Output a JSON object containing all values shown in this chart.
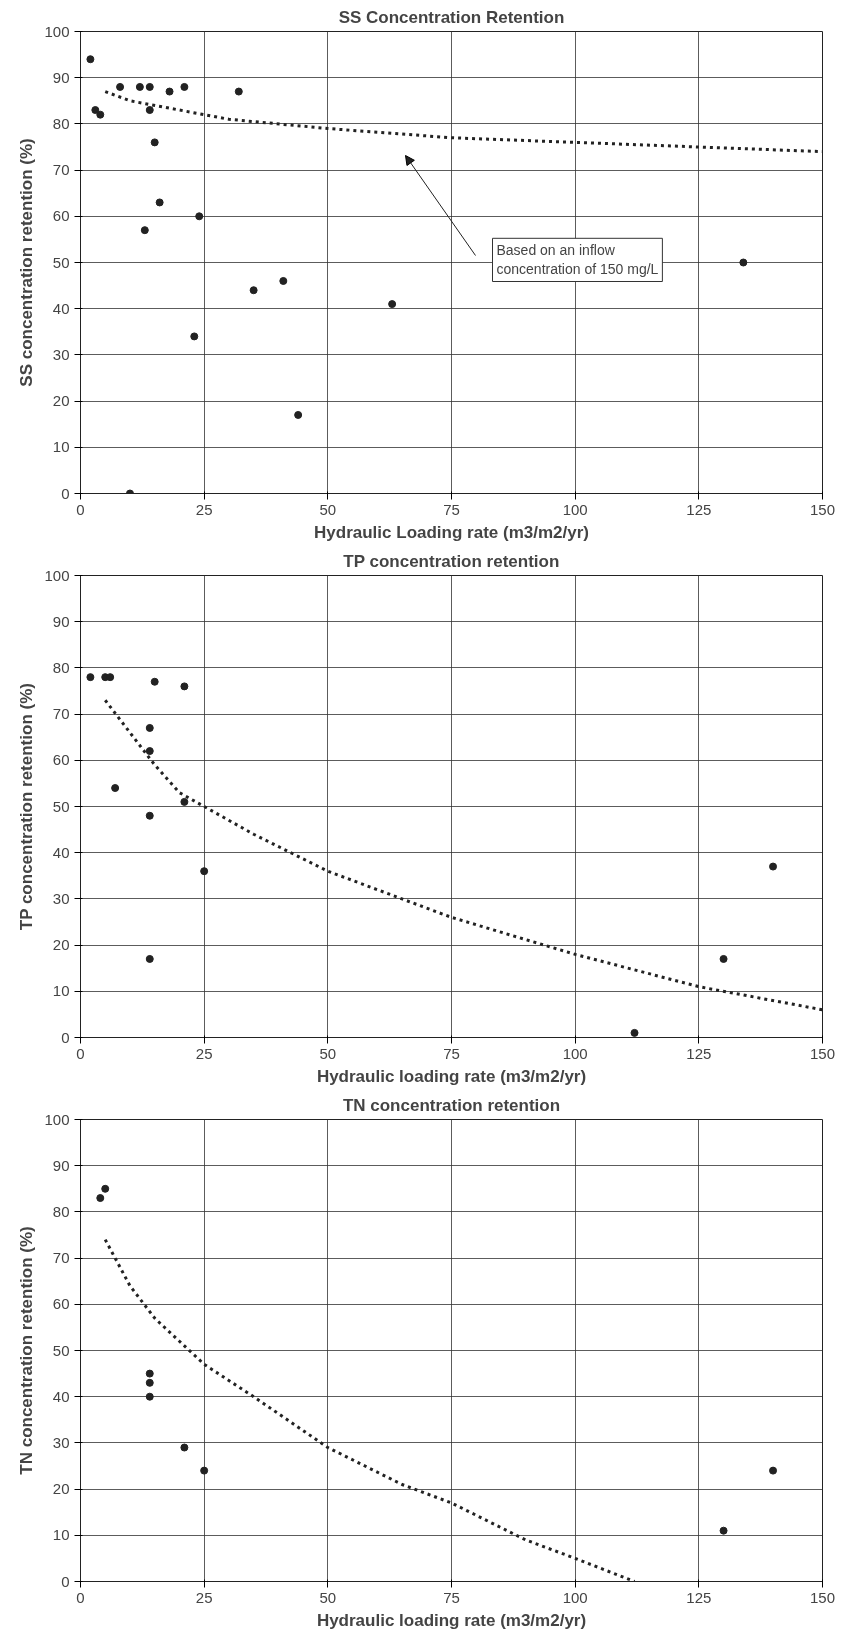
{
  "chart_data": [
    {
      "type": "scatter",
      "title": "SS Concentration Retention",
      "xlabel": "Hydraulic Loading rate (m3/m2/yr)",
      "ylabel": "SS concentration retention (%)",
      "xlim": [
        0,
        150
      ],
      "ylim": [
        0,
        100
      ],
      "xticks": [
        0,
        25,
        50,
        75,
        100,
        125,
        150
      ],
      "yticks": [
        0,
        10,
        20,
        30,
        40,
        50,
        60,
        70,
        80,
        90,
        100
      ],
      "grid": true,
      "series": [
        {
          "marker": "circle",
          "color": "#222222",
          "x": [
            2,
            3,
            4,
            8,
            12,
            14,
            14,
            15,
            16,
            13,
            18,
            21,
            10,
            24,
            23,
            32,
            35,
            41,
            44,
            63,
            134
          ],
          "values": [
            94,
            83,
            82,
            88,
            88,
            88,
            83,
            76,
            63,
            57,
            87,
            88,
            0,
            60,
            34,
            87,
            44,
            46,
            17,
            41,
            50
          ]
        },
        {
          "type": "line",
          "line_style": "dotted",
          "color": "#222222",
          "x": [
            5,
            10,
            20,
            30,
            50,
            75,
            100,
            125,
            150
          ],
          "values": [
            87,
            85,
            83,
            81,
            79,
            77,
            76,
            75,
            74
          ]
        }
      ],
      "annotations": [
        "Based on an inflow\nconcentration of 150 mg/L"
      ]
    },
    {
      "type": "scatter",
      "title": "TP concentration retention",
      "xlabel": "Hydraulic loading rate (m3/m2/yr)",
      "ylabel": "TP concentration retention (%)",
      "xlim": [
        0,
        150
      ],
      "ylim": [
        0,
        100
      ],
      "xticks": [
        0,
        25,
        50,
        75,
        100,
        125,
        150
      ],
      "yticks": [
        0,
        10,
        20,
        30,
        40,
        50,
        60,
        70,
        80,
        90,
        100
      ],
      "grid": true,
      "series": [
        {
          "marker": "circle",
          "color": "#222222",
          "x": [
            2,
            5,
            6,
            7,
            14,
            14,
            14,
            14,
            15,
            21,
            21,
            25,
            112,
            130,
            140
          ],
          "values": [
            78,
            78,
            78,
            54,
            48,
            17,
            67,
            62,
            77,
            76,
            51,
            36,
            1,
            17,
            37
          ]
        },
        {
          "type": "line",
          "line_style": "dotted",
          "color": "#222222",
          "x": [
            5,
            10,
            15,
            20,
            25,
            35,
            50,
            65,
            75,
            100,
            125,
            150
          ],
          "values": [
            73,
            66,
            59,
            53,
            50,
            44,
            36,
            30,
            26,
            18,
            11,
            6
          ]
        }
      ]
    },
    {
      "type": "scatter",
      "title": "TN concentration retention",
      "xlabel": "Hydraulic loading rate (m3/m2/yr)",
      "ylabel": "TN concentration retention (%)",
      "xlim": [
        0,
        150
      ],
      "ylim": [
        0,
        100
      ],
      "xticks": [
        0,
        25,
        50,
        75,
        100,
        125,
        150
      ],
      "yticks": [
        0,
        10,
        20,
        30,
        40,
        50,
        60,
        70,
        80,
        90,
        100
      ],
      "grid": true,
      "series": [
        {
          "marker": "circle",
          "color": "#222222",
          "x": [
            4,
            5,
            14,
            14,
            14,
            21,
            25,
            130,
            140
          ],
          "values": [
            83,
            85,
            40,
            43,
            45,
            29,
            24,
            11,
            24
          ]
        },
        {
          "type": "line",
          "line_style": "dotted",
          "color": "#222222",
          "x": [
            5,
            10,
            15,
            20,
            25,
            35,
            50,
            65,
            75,
            90,
            100,
            112
          ],
          "values": [
            74,
            64,
            57,
            52,
            47,
            40,
            29,
            21,
            17,
            9,
            5,
            0
          ]
        }
      ]
    }
  ]
}
